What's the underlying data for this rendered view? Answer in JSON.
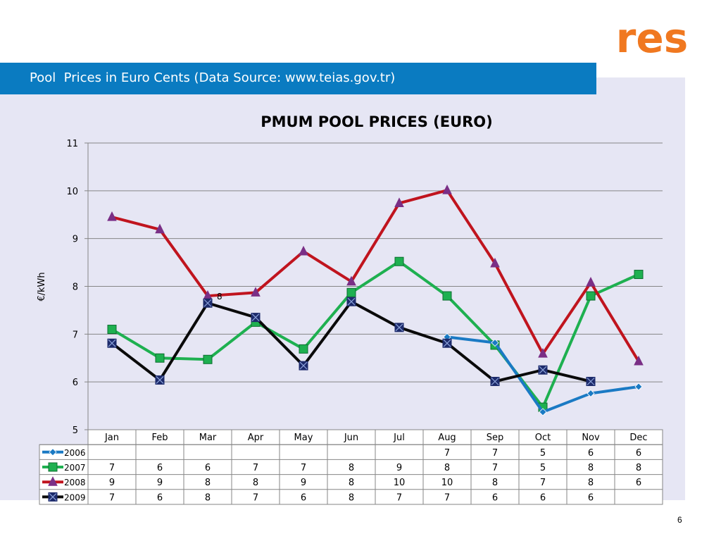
{
  "header": {
    "title": "Pool  Prices in Euro Cents (Data Source: www.teias.gov.tr)",
    "logo_text": "res"
  },
  "colors": {
    "banner": "#0a7bc1",
    "logo": "#f07820",
    "plot_bg": "#e6e6f4"
  },
  "page_number": "6",
  "chart_data": {
    "type": "line",
    "title": "PMUM POOL PRICES (EURO)",
    "ylabel": "€/kWh",
    "xlabel": "",
    "ylim": [
      5,
      11
    ],
    "yticks": [
      5,
      6,
      7,
      8,
      9,
      10,
      11
    ],
    "grid": true,
    "legend": "data-table-left",
    "categories": [
      "Jan",
      "Feb",
      "Mar",
      "Apr",
      "May",
      "Jun",
      "Jul",
      "Aug",
      "Sep",
      "Oct",
      "Nov",
      "Dec"
    ],
    "series": [
      {
        "name": "2006",
        "color": "#1a7ac4",
        "marker": "diamond",
        "values": [
          null,
          null,
          null,
          null,
          null,
          null,
          null,
          6.94,
          6.82,
          5.37,
          5.76,
          5.9
        ],
        "table": [
          "",
          "",
          "",
          "",
          "",
          "",
          "",
          "7",
          "7",
          "5",
          "6",
          "6"
        ]
      },
      {
        "name": "2007",
        "color": "#1eb050",
        "marker": "square",
        "values": [
          7.1,
          6.5,
          6.47,
          7.25,
          6.69,
          7.87,
          8.52,
          7.8,
          6.77,
          5.47,
          7.8,
          8.25
        ],
        "table": [
          "7",
          "6",
          "6",
          "7",
          "7",
          "8",
          "9",
          "8",
          "7",
          "5",
          "8",
          "8"
        ]
      },
      {
        "name": "2008",
        "color": "#c0141e",
        "marker": "triangle",
        "values": [
          9.45,
          9.19,
          7.8,
          7.87,
          8.73,
          8.1,
          9.74,
          10.01,
          8.48,
          6.59,
          8.08,
          6.43
        ],
        "table": [
          "9",
          "9",
          "8",
          "8",
          "9",
          "8",
          "10",
          "10",
          "8",
          "7",
          "8",
          "6"
        ]
      },
      {
        "name": "2009",
        "color": "#0a0a0a",
        "marker": "x-square",
        "values": [
          6.81,
          6.04,
          7.65,
          7.35,
          6.34,
          7.68,
          7.14,
          6.81,
          6.01,
          6.25,
          6.01,
          null
        ],
        "table": [
          "7",
          "6",
          "8",
          "7",
          "6",
          "8",
          "7",
          "7",
          "6",
          "6",
          "6",
          ""
        ]
      }
    ],
    "annotations": [
      {
        "series": "2008",
        "category": "Mar",
        "text": "8"
      }
    ]
  }
}
